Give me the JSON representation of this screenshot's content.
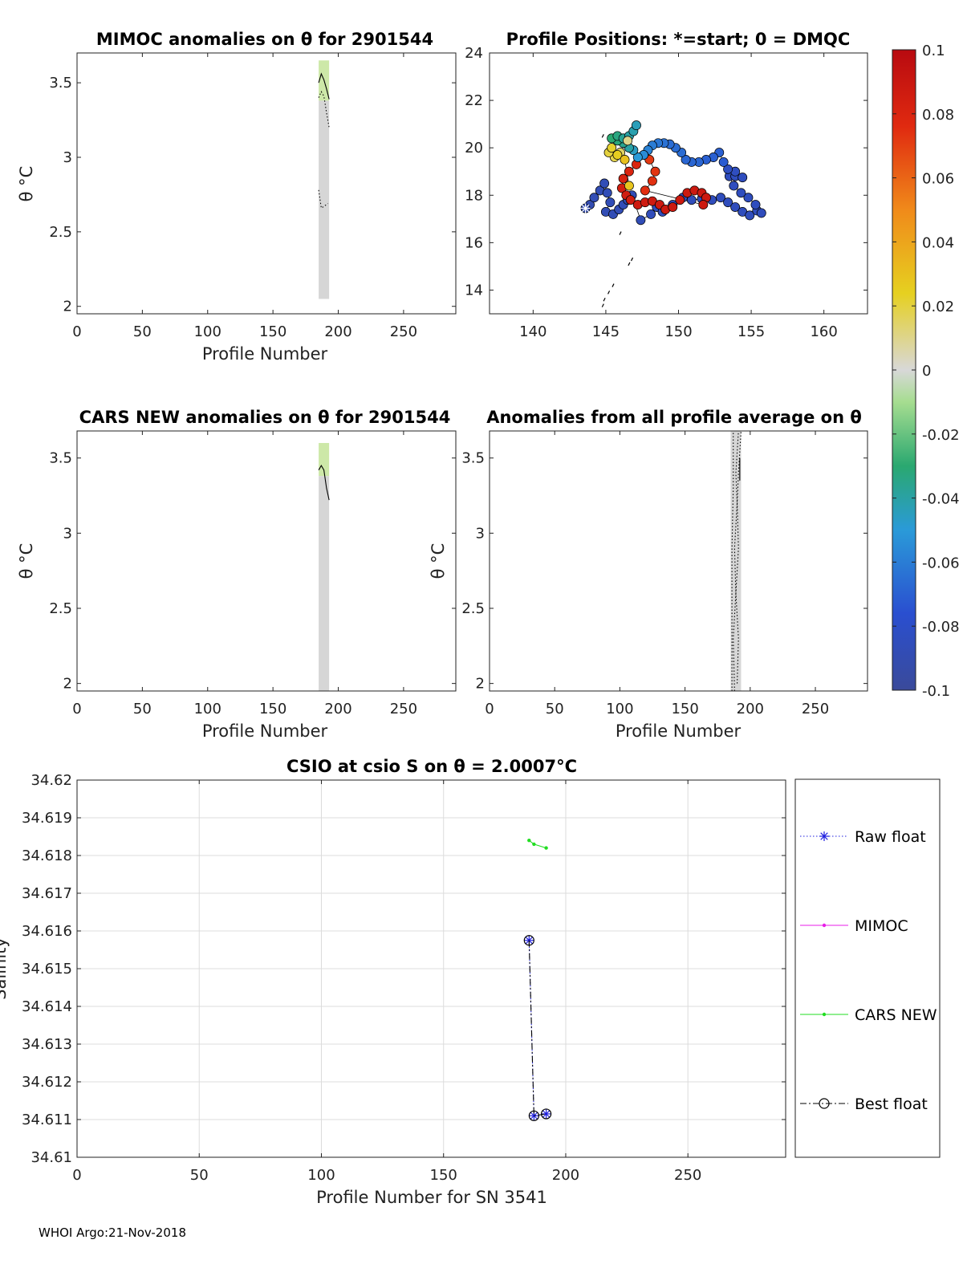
{
  "footer": "WHOI Argo:21-Nov-2018",
  "chart_data": [
    {
      "id": "p1",
      "type": "heatmap",
      "title": "MIMOC anomalies on θ  for 2901544",
      "xlabel": "Profile Number",
      "ylabel": "θ °C",
      "xlim": [
        0,
        290
      ],
      "ylim": [
        1.95,
        3.7
      ],
      "xticks": [
        "0",
        "50",
        "100",
        "150",
        "200",
        "250"
      ],
      "yticks": [
        "2",
        "2.5",
        "3",
        "3.5"
      ],
      "band": {
        "x": [
          185,
          193
        ],
        "segments": [
          {
            "y": [
              3.38,
              3.65
            ],
            "color": "#cde8a8"
          },
          {
            "y": [
              2.05,
              3.38
            ],
            "color": "#d6d6d6"
          }
        ]
      },
      "lines": [
        {
          "style": "solid",
          "points": [
            [
              185,
              3.5
            ],
            [
              187,
              3.56
            ],
            [
              189,
              3.52
            ],
            [
              191,
              3.46
            ],
            [
              193,
              3.39
            ]
          ]
        },
        {
          "style": "dotted",
          "points": [
            [
              185,
              3.4
            ],
            [
              187,
              3.44
            ],
            [
              189,
              3.41
            ],
            [
              191,
              3.3
            ],
            [
              193,
              3.2
            ]
          ]
        },
        {
          "style": "dotted",
          "points": [
            [
              185,
              2.78
            ],
            [
              186,
              2.72
            ],
            [
              187,
              2.66
            ],
            [
              189,
              2.67
            ],
            [
              192,
              2.69
            ]
          ]
        }
      ]
    },
    {
      "id": "p2",
      "type": "scatter",
      "title": "Profile Positions: *=start; 0 = DMQC",
      "xlabel": "",
      "ylabel": "",
      "xlim": [
        137,
        163
      ],
      "ylim": [
        13,
        24
      ],
      "xticks": [
        "140",
        "145",
        "150",
        "155",
        "160"
      ],
      "yticks": [
        "14",
        "16",
        "18",
        "20",
        "22",
        "24"
      ],
      "colorbar": {
        "ticks": [
          "0.1",
          "0.08",
          "0.06",
          "0.04",
          "0.02",
          "0",
          "-0.02",
          "-0.04",
          "-0.06",
          "-0.08",
          "-0.1"
        ],
        "range": [
          -0.1,
          0.1
        ]
      },
      "start_point": [
        143.6,
        17.45
      ],
      "track": [
        [
          143.6,
          17.45
        ],
        [
          143.9,
          17.6
        ],
        [
          144.2,
          17.9
        ],
        [
          144.6,
          18.2
        ],
        [
          144.9,
          18.5
        ],
        [
          145.1,
          18.1
        ],
        [
          145.3,
          17.7
        ],
        [
          145.0,
          17.3
        ],
        [
          145.5,
          17.2
        ],
        [
          145.9,
          17.4
        ],
        [
          146.2,
          17.6
        ],
        [
          146.5,
          17.8
        ],
        [
          146.8,
          18.0
        ],
        [
          147.4,
          16.95
        ],
        [
          148.1,
          17.2
        ],
        [
          148.5,
          17.5
        ],
        [
          148.9,
          17.3
        ],
        [
          149.6,
          17.6
        ],
        [
          150.3,
          17.9
        ],
        [
          150.9,
          17.8
        ],
        [
          151.6,
          17.85
        ],
        [
          152.3,
          17.8
        ],
        [
          152.9,
          17.9
        ],
        [
          153.4,
          17.7
        ],
        [
          153.9,
          17.5
        ],
        [
          154.4,
          17.3
        ],
        [
          154.9,
          17.15
        ],
        [
          155.4,
          17.35
        ],
        [
          155.7,
          17.25
        ],
        [
          155.3,
          17.6
        ],
        [
          154.8,
          17.9
        ],
        [
          154.3,
          18.1
        ],
        [
          153.8,
          18.4
        ],
        [
          153.5,
          18.8
        ],
        [
          153.9,
          18.8
        ],
        [
          154.4,
          18.75
        ],
        [
          153.9,
          19.0
        ],
        [
          153.4,
          19.1
        ],
        [
          153.1,
          19.4
        ],
        [
          152.8,
          19.8
        ],
        [
          152.4,
          19.6
        ],
        [
          151.9,
          19.5
        ],
        [
          151.4,
          19.4
        ],
        [
          150.9,
          19.4
        ],
        [
          150.5,
          19.5
        ],
        [
          150.2,
          19.8
        ],
        [
          149.8,
          20.0
        ],
        [
          149.4,
          20.15
        ],
        [
          149.0,
          20.2
        ],
        [
          148.6,
          20.2
        ],
        [
          148.2,
          20.1
        ],
        [
          147.9,
          19.9
        ],
        [
          147.6,
          19.7
        ],
        [
          147.1,
          19.3
        ],
        [
          146.6,
          19.0
        ],
        [
          146.2,
          18.7
        ],
        [
          146.1,
          18.3
        ],
        [
          146.4,
          18.0
        ],
        [
          146.7,
          17.8
        ],
        [
          147.2,
          17.6
        ],
        [
          147.7,
          17.7
        ],
        [
          148.2,
          17.75
        ],
        [
          148.7,
          17.6
        ],
        [
          149.1,
          17.4
        ],
        [
          149.6,
          17.5
        ],
        [
          150.1,
          17.8
        ],
        [
          150.6,
          18.1
        ],
        [
          151.1,
          18.2
        ],
        [
          151.6,
          18.1
        ],
        [
          151.9,
          17.9
        ],
        [
          151.7,
          17.6
        ],
        [
          147.7,
          18.2
        ],
        [
          148.2,
          18.6
        ],
        [
          148.4,
          19.0
        ],
        [
          148.0,
          19.5
        ],
        [
          147.6,
          19.7
        ],
        [
          147.2,
          19.6
        ],
        [
          146.9,
          19.9
        ],
        [
          146.6,
          20.0
        ],
        [
          146.2,
          20.2
        ],
        [
          145.8,
          20.3
        ],
        [
          145.4,
          20.4
        ],
        [
          145.8,
          20.5
        ],
        [
          146.2,
          20.4
        ],
        [
          146.6,
          20.5
        ],
        [
          146.9,
          20.7
        ],
        [
          147.1,
          20.95
        ],
        [
          146.5,
          20.3
        ],
        [
          146.0,
          19.8
        ],
        [
          145.6,
          19.6
        ],
        [
          145.2,
          19.8
        ],
        [
          145.4,
          20.0
        ],
        [
          145.8,
          19.7
        ],
        [
          146.3,
          19.5
        ],
        [
          146.6,
          18.4
        ]
      ],
      "values": [
        -0.09,
        -0.09,
        -0.088,
        -0.088,
        -0.087,
        -0.087,
        -0.087,
        -0.088,
        -0.088,
        -0.088,
        -0.087,
        -0.087,
        -0.087,
        -0.087,
        -0.086,
        -0.086,
        -0.086,
        -0.086,
        -0.086,
        -0.086,
        -0.085,
        -0.085,
        -0.085,
        -0.085,
        -0.085,
        -0.085,
        -0.085,
        -0.085,
        -0.085,
        -0.084,
        -0.084,
        -0.084,
        -0.084,
        -0.084,
        -0.084,
        -0.084,
        -0.083,
        -0.083,
        -0.072,
        -0.07,
        -0.07,
        -0.07,
        -0.068,
        -0.068,
        -0.068,
        -0.066,
        -0.066,
        -0.066,
        -0.064,
        -0.062,
        -0.06,
        -0.058,
        -0.056,
        0.08,
        0.08,
        0.082,
        0.084,
        0.085,
        0.086,
        0.087,
        0.087,
        0.087,
        0.088,
        0.088,
        0.088,
        0.088,
        0.088,
        0.088,
        0.088,
        0.088,
        0.088,
        0.075,
        0.074,
        0.073,
        0.072,
        -0.055,
        -0.05,
        -0.046,
        -0.04,
        -0.036,
        -0.032,
        -0.03,
        -0.033,
        -0.037,
        -0.04,
        -0.042,
        -0.044,
        0.01,
        0.015,
        0.018,
        0.02,
        0.022,
        0.025,
        0.03,
        0.028
      ],
      "extra_points": [
        [
          144.8,
          20.5
        ],
        [
          146.0,
          16.4
        ],
        [
          146.6,
          15.1
        ],
        [
          146.8,
          15.3
        ],
        [
          145.5,
          14.2
        ],
        [
          145.2,
          13.9
        ],
        [
          144.9,
          13.6
        ],
        [
          144.8,
          13.35
        ]
      ]
    },
    {
      "id": "p3",
      "type": "heatmap",
      "title": "CARS NEW anomalies on θ for 2901544",
      "xlabel": "Profile Number",
      "ylabel": "θ °C",
      "xlim": [
        0,
        290
      ],
      "ylim": [
        1.95,
        3.68
      ],
      "xticks": [
        "0",
        "50",
        "100",
        "150",
        "200",
        "250"
      ],
      "yticks": [
        "2",
        "2.5",
        "3",
        "3.5"
      ],
      "band": {
        "x": [
          185,
          193
        ],
        "segments": [
          {
            "y": [
              3.38,
              3.6
            ],
            "color": "#cde8a8"
          },
          {
            "y": [
              1.95,
              3.38
            ],
            "color": "#d6d6d6"
          }
        ]
      },
      "lines": [
        {
          "style": "solid",
          "points": [
            [
              185,
              3.42
            ],
            [
              187,
              3.45
            ],
            [
              189,
              3.42
            ],
            [
              191,
              3.3
            ],
            [
              193,
              3.22
            ]
          ]
        }
      ]
    },
    {
      "id": "p4",
      "type": "heatmap",
      "title": "Anomalies from all profile average on θ",
      "xlabel": "Profile Number",
      "ylabel": "θ °C",
      "xlim": [
        0,
        290
      ],
      "ylim": [
        1.95,
        3.68
      ],
      "xticks": [
        "0",
        "50",
        "100",
        "150",
        "200",
        "250"
      ],
      "yticks": [
        "2",
        "2.5",
        "3",
        "3.5"
      ],
      "band": {
        "x": [
          185,
          193
        ],
        "segments": [
          {
            "y": [
              1.95,
              3.68
            ],
            "color": "#d6d6d6"
          }
        ]
      },
      "lines": [
        {
          "style": "dotted",
          "points": [
            [
              186,
              1.95
            ],
            [
              186,
              2.4
            ],
            [
              186,
              2.9
            ],
            [
              187,
              3.3
            ],
            [
              187,
              3.68
            ]
          ]
        },
        {
          "style": "dotted",
          "points": [
            [
              188,
              1.95
            ],
            [
              187,
              2.3
            ],
            [
              189,
              2.6
            ],
            [
              188,
              2.9
            ],
            [
              190,
              3.2
            ],
            [
              189,
              3.4
            ],
            [
              191,
              3.68
            ]
          ]
        },
        {
          "style": "dotted",
          "points": [
            [
              190,
              2.0
            ],
            [
              191,
              2.3
            ],
            [
              189,
              2.6
            ],
            [
              191,
              2.9
            ],
            [
              190,
              3.2
            ],
            [
              191,
              3.4
            ],
            [
              193,
              3.68
            ]
          ]
        },
        {
          "style": "solid",
          "points": [
            [
              192,
              3.35
            ],
            [
              192,
              3.5
            ]
          ]
        }
      ]
    },
    {
      "id": "p5",
      "type": "line",
      "title": "CSIO at csio S on θ = 2.0007°C",
      "xlabel": "Profile Number for SN 3541",
      "ylabel": "Salinity",
      "xlim": [
        0,
        290
      ],
      "ylim": [
        34.61,
        34.62
      ],
      "xticks": [
        "0",
        "50",
        "100",
        "150",
        "200",
        "250"
      ],
      "yticks": [
        "34.61",
        "34.611",
        "34.612",
        "34.613",
        "34.614",
        "34.615",
        "34.616",
        "34.617",
        "34.618",
        "34.619",
        "34.62"
      ],
      "series": [
        {
          "name": "Raw float",
          "x": [
            185,
            187,
            192
          ],
          "y": [
            34.61575,
            34.6111,
            34.61115
          ],
          "color": "#1f1fdf",
          "style": "dotted",
          "marker": "star"
        },
        {
          "name": "MIMOC",
          "x": [],
          "y": [],
          "color": "#e81ee8",
          "style": "solid",
          "marker": "dot"
        },
        {
          "name": "CARS NEW",
          "x": [
            185,
            187,
            192
          ],
          "y": [
            34.6184,
            34.6183,
            34.6182
          ],
          "color": "#22dd22",
          "style": "solid",
          "marker": "dot"
        },
        {
          "name": "Best float",
          "x": [
            185,
            187,
            192
          ],
          "y": [
            34.61575,
            34.6111,
            34.61115
          ],
          "color": "#000000",
          "style": "dashdot",
          "marker": "circle"
        }
      ]
    }
  ]
}
